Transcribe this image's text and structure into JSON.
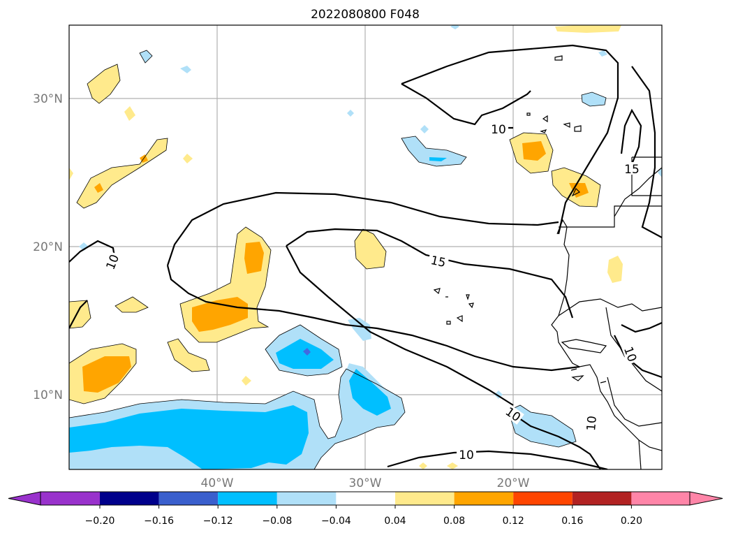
{
  "title": "2022080800 F048",
  "map": {
    "lat_labels": [
      "30°N",
      "20°N",
      "10°N"
    ],
    "lon_labels": [
      "40°W",
      "30°W",
      "20°W"
    ],
    "contour_labels": [
      "10",
      "15",
      "15",
      "10",
      "10",
      "10",
      "10",
      "10"
    ]
  },
  "colorbar": {
    "ticks": [
      "−0.20",
      "−0.16",
      "−0.12",
      "−0.08",
      "−0.04",
      "0.04",
      "0.08",
      "0.12",
      "0.16",
      "0.20"
    ],
    "colors": [
      "#9932cc",
      "#00008b",
      "#3a5fcd",
      "#00bfff",
      "#b0e0f8",
      "#ffffff",
      "#ffea8c",
      "#ffa500",
      "#ff4500",
      "#b22222",
      "#ff85a8",
      "#ff85a8"
    ]
  }
}
